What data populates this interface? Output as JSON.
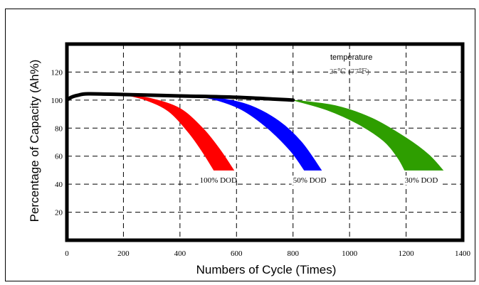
{
  "chart_data": {
    "type": "area",
    "title": "",
    "xlabel": "Numbers of Cycle (Times)",
    "ylabel": "Percentage of Capacity (Ah%)",
    "xlim": [
      0,
      1400
    ],
    "ylim": [
      0,
      140
    ],
    "x_ticks": [
      0,
      200,
      400,
      600,
      800,
      1000,
      1200,
      1400
    ],
    "y_ticks": [
      20,
      40,
      60,
      80,
      100,
      120
    ],
    "x_tick_labels": [
      "0",
      "200",
      "400",
      "600",
      "800",
      "1000",
      "1200",
      "1400"
    ],
    "y_tick_labels": [
      "20",
      "40",
      "60",
      "80",
      "100",
      "120"
    ],
    "grid": true,
    "annotation": {
      "line1": "temperature",
      "line2": "25℃ (77℉)"
    },
    "main_curve": {
      "color": "#000000",
      "points": [
        [
          0,
          100
        ],
        [
          15,
          102
        ],
        [
          40,
          103.5
        ],
        [
          75,
          104.5
        ],
        [
          200,
          104
        ],
        [
          400,
          103
        ],
        [
          600,
          102
        ],
        [
          800,
          100
        ]
      ]
    },
    "series": [
      {
        "name": "100% DOD",
        "color": "#ff0000",
        "upper": [
          [
            200,
            104
          ],
          [
            300,
            101
          ],
          [
            400,
            94
          ],
          [
            480,
            80
          ],
          [
            540,
            65
          ],
          [
            590,
            50
          ]
        ],
        "lower": [
          [
            200,
            104
          ],
          [
            280,
            100
          ],
          [
            360,
            92
          ],
          [
            430,
            77
          ],
          [
            480,
            63
          ],
          [
            520,
            50
          ]
        ]
      },
      {
        "name": "50% DOD",
        "color": "#0000ff",
        "upper": [
          [
            450,
            103
          ],
          [
            550,
            101
          ],
          [
            650,
            96
          ],
          [
            750,
            85
          ],
          [
            830,
            70
          ],
          [
            900,
            50
          ]
        ],
        "lower": [
          [
            450,
            103
          ],
          [
            530,
            100
          ],
          [
            620,
            93
          ],
          [
            710,
            80
          ],
          [
            790,
            64
          ],
          [
            840,
            50
          ]
        ]
      },
      {
        "name": "30% DOD",
        "color": "#2e9e00",
        "upper": [
          [
            800,
            100
          ],
          [
            950,
            96
          ],
          [
            1080,
            87
          ],
          [
            1200,
            73
          ],
          [
            1280,
            61
          ],
          [
            1330,
            50
          ]
        ],
        "lower": [
          [
            800,
            100
          ],
          [
            920,
            93
          ],
          [
            1030,
            83
          ],
          [
            1120,
            71
          ],
          [
            1170,
            59
          ],
          [
            1195,
            50
          ]
        ]
      }
    ],
    "series_labels": [
      {
        "text": "100% DOD",
        "x": 470,
        "y": 41
      },
      {
        "text": "50% DOD",
        "x": 800,
        "y": 41
      },
      {
        "text": "30% DOD",
        "x": 1195,
        "y": 41
      }
    ],
    "plot_background": "#ffffff",
    "grid_color": "#000000"
  }
}
